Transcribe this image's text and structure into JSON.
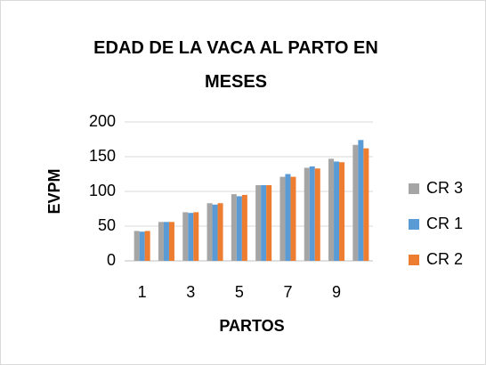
{
  "chart_data": {
    "type": "bar",
    "title": "EDAD DE LA VACA AL PARTO EN MESES",
    "x_label": "PARTOS",
    "y_label": "EVPM",
    "categories": [
      "1",
      null,
      "3",
      null,
      "5",
      null,
      "7",
      null,
      "9",
      null
    ],
    "series": [
      {
        "name": "CR 3",
        "color": "#a5a5a5",
        "values": [
          43,
          56,
          70,
          83,
          96,
          109,
          121,
          134,
          147,
          167
        ]
      },
      {
        "name": "CR 1",
        "color": "#5b9bd5",
        "values": [
          42,
          56,
          69,
          81,
          93,
          109,
          125,
          136,
          143,
          174
        ]
      },
      {
        "name": "CR 2",
        "color": "#ed7d31",
        "values": [
          43,
          56,
          70,
          83,
          95,
          109,
          121,
          133,
          142,
          162
        ]
      }
    ],
    "ylim": [
      0,
      200
    ],
    "yticks": [
      0,
      50,
      100,
      150,
      200
    ],
    "grid": true,
    "legend": "right"
  }
}
